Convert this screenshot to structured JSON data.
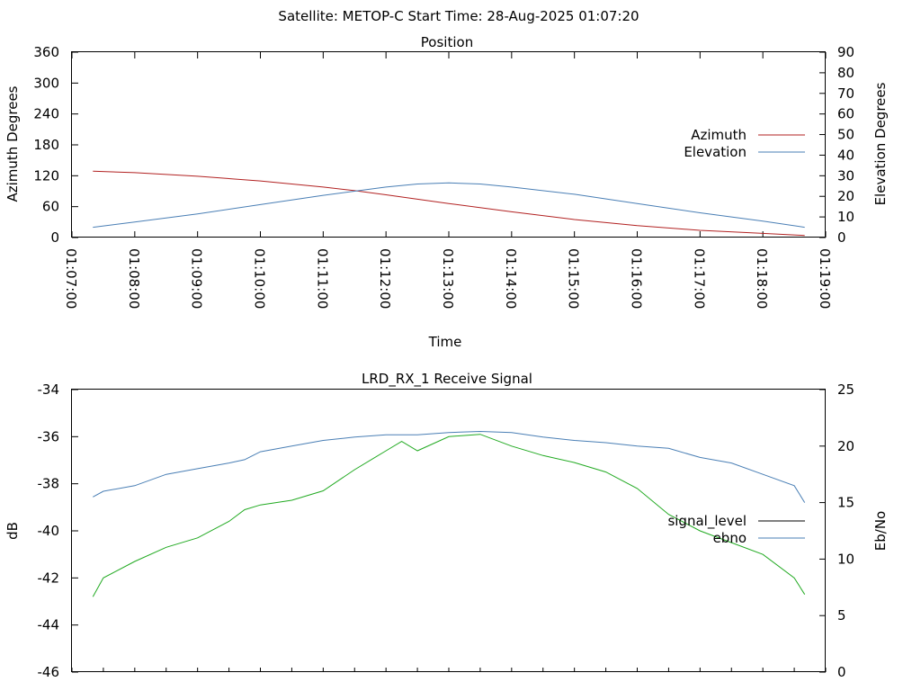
{
  "header": {
    "title": "Satellite: METOP-C    Start Time: 28-Aug-2025 01:07:20"
  },
  "chart_data": [
    {
      "type": "line",
      "title": "Position",
      "xlabel": "Time",
      "ylabel": "Azimuth Degrees",
      "y2label": "Elevation Degrees",
      "x_ticks": [
        "01:07:00",
        "01:08:00",
        "01:09:00",
        "01:10:00",
        "01:11:00",
        "01:12:00",
        "01:13:00",
        "01:14:00",
        "01:15:00",
        "01:16:00",
        "01:17:00",
        "01:18:00",
        "01:19:00"
      ],
      "ylim": [
        0,
        360
      ],
      "y_ticks": [
        "0",
        "60",
        "120",
        "180",
        "240",
        "300",
        "360"
      ],
      "y2lim": [
        0,
        90
      ],
      "y2_ticks": [
        "0",
        "10",
        "20",
        "30",
        "40",
        "50",
        "60",
        "70",
        "80",
        "90"
      ],
      "legend_position": "right",
      "series": [
        {
          "name": "Azimuth",
          "axis": "y",
          "color": "#b22222",
          "x": [
            "01:07:20",
            "01:08:00",
            "01:09:00",
            "01:10:00",
            "01:11:00",
            "01:11:30",
            "01:12:00",
            "01:13:00",
            "01:14:00",
            "01:15:00",
            "01:16:00",
            "01:17:00",
            "01:18:00",
            "01:18:40"
          ],
          "y": [
            129,
            126,
            119,
            110,
            98,
            91,
            83,
            66,
            50,
            35,
            23,
            14,
            8,
            4
          ]
        },
        {
          "name": "Elevation",
          "axis": "y2",
          "color": "#4a7fb5",
          "x": [
            "01:07:20",
            "01:08:00",
            "01:09:00",
            "01:10:00",
            "01:11:00",
            "01:12:00",
            "01:12:30",
            "01:13:00",
            "01:13:30",
            "01:14:00",
            "01:15:00",
            "01:16:00",
            "01:17:00",
            "01:18:00",
            "01:18:40"
          ],
          "y": [
            5,
            7.5,
            11.5,
            16,
            20.5,
            24.5,
            26,
            26.5,
            26,
            24.5,
            21,
            16.5,
            12,
            8,
            5
          ]
        }
      ]
    },
    {
      "type": "line",
      "title": "LRD_RX_1 Receive Signal",
      "ylabel": "dB",
      "y2label": "Eb/No",
      "ylim": [
        -46,
        -34
      ],
      "y_ticks": [
        "-46",
        "-44",
        "-42",
        "-40",
        "-38",
        "-36",
        "-34"
      ],
      "y2lim": [
        0,
        25
      ],
      "y2_ticks": [
        "0",
        "5",
        "10",
        "15",
        "20",
        "25"
      ],
      "legend_position": "right",
      "series": [
        {
          "name": "signal_level",
          "axis": "y",
          "color": "#22aa22",
          "x": [
            "01:07:20",
            "01:07:30",
            "01:08:00",
            "01:08:30",
            "01:09:00",
            "01:09:30",
            "01:09:45",
            "01:10:00",
            "01:10:30",
            "01:11:00",
            "01:11:30",
            "01:12:00",
            "01:12:15",
            "01:12:30",
            "01:13:00",
            "01:13:30",
            "01:14:00",
            "01:14:30",
            "01:15:00",
            "01:15:30",
            "01:16:00",
            "01:16:30",
            "01:17:00",
            "01:17:30",
            "01:18:00",
            "01:18:30",
            "01:18:40"
          ],
          "y": [
            -42.8,
            -42.0,
            -41.3,
            -40.7,
            -40.3,
            -39.6,
            -39.1,
            -38.9,
            -38.7,
            -38.3,
            -37.4,
            -36.6,
            -36.2,
            -36.6,
            -36.0,
            -35.9,
            -36.4,
            -36.8,
            -37.1,
            -37.5,
            -38.2,
            -39.3,
            -40.0,
            -40.5,
            -41.0,
            -42.0,
            -42.7
          ]
        },
        {
          "name": "ebno",
          "axis": "y2",
          "color": "#4a7fb5",
          "x": [
            "01:07:20",
            "01:07:30",
            "01:08:00",
            "01:08:30",
            "01:09:00",
            "01:09:30",
            "01:09:45",
            "01:10:00",
            "01:10:30",
            "01:11:00",
            "01:11:30",
            "01:12:00",
            "01:12:30",
            "01:13:00",
            "01:13:30",
            "01:14:00",
            "01:14:30",
            "01:15:00",
            "01:15:30",
            "01:16:00",
            "01:16:30",
            "01:17:00",
            "01:17:30",
            "01:18:00",
            "01:18:30",
            "01:18:40"
          ],
          "y": [
            15.5,
            16,
            16.5,
            17.5,
            18,
            18.5,
            18.8,
            19.5,
            20,
            20.5,
            20.8,
            21,
            21,
            21.2,
            21.3,
            21.2,
            20.8,
            20.5,
            20.3,
            20,
            19.8,
            19,
            18.5,
            17.5,
            16.5,
            15
          ]
        }
      ]
    }
  ]
}
